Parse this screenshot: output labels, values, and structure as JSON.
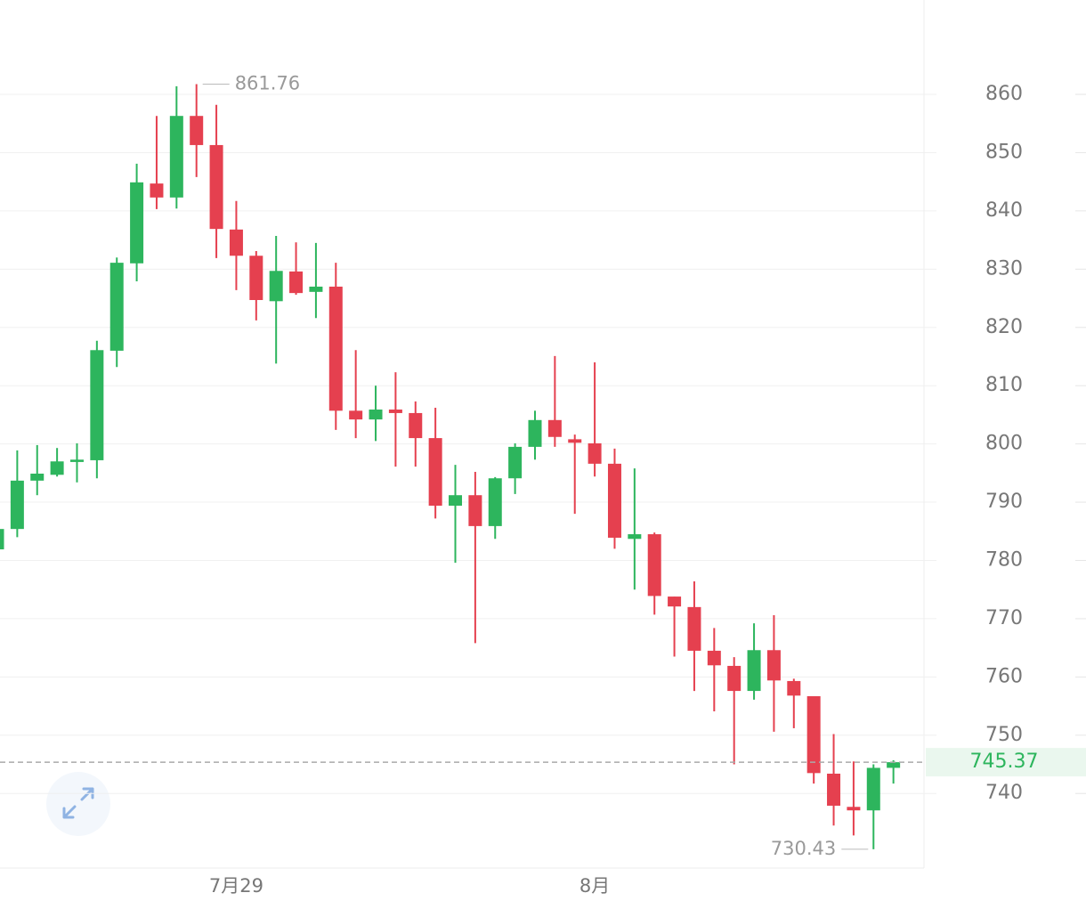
{
  "chart_data": {
    "type": "candlestick",
    "categories": [
      null,
      null,
      null,
      null,
      null,
      null,
      null,
      null,
      null,
      null,
      null,
      null,
      "7月29",
      null,
      null,
      null,
      null,
      null,
      null,
      null,
      null,
      null,
      null,
      null,
      null,
      null,
      null,
      null,
      null,
      null,
      "8月",
      null,
      null,
      null,
      null,
      null,
      null,
      null,
      null,
      null,
      null,
      null,
      null,
      null,
      null,
      null
    ],
    "open": [
      781.9,
      785.4,
      793.7,
      794.7,
      796.9,
      797.2,
      816.0,
      831.0,
      844.7,
      842.3,
      856.3,
      851.3,
      836.8,
      832.3,
      824.5,
      829.6,
      826.1,
      827.0,
      805.7,
      804.2,
      805.9,
      805.3,
      801.0,
      789.4,
      791.2,
      785.9,
      794.1,
      799.5,
      804.1,
      800.8,
      800.1,
      796.6,
      783.7,
      784.5,
      773.8,
      772.0,
      764.5,
      761.9,
      757.6,
      764.6,
      759.3,
      756.7,
      743.4,
      737.7,
      737.1,
      744.4
    ],
    "high": [
      785.4,
      798.9,
      799.8,
      799.3,
      800.1,
      817.7,
      832.0,
      848.1,
      856.3,
      861.4,
      861.76,
      858.2,
      841.7,
      833.1,
      835.7,
      834.6,
      834.5,
      831.1,
      816.1,
      810.0,
      812.3,
      807.3,
      806.2,
      796.4,
      795.2,
      794.3,
      800.1,
      805.7,
      815.1,
      801.6,
      814.0,
      799.2,
      795.8,
      784.8,
      773.8,
      776.4,
      768.4,
      763.4,
      769.2,
      770.6,
      759.7,
      756.7,
      750.2,
      745.5,
      745.0,
      745.7
    ],
    "low": [
      781.9,
      784.0,
      791.2,
      794.4,
      793.4,
      794.1,
      813.2,
      827.9,
      840.3,
      840.4,
      845.8,
      831.9,
      826.4,
      821.2,
      813.8,
      825.6,
      821.6,
      802.4,
      801.0,
      800.5,
      796.1,
      796.1,
      787.2,
      779.6,
      765.8,
      783.7,
      791.4,
      797.3,
      799.5,
      788.0,
      794.4,
      782.0,
      775.0,
      770.7,
      763.5,
      757.6,
      754.1,
      745.0,
      756.1,
      750.6,
      751.2,
      741.7,
      734.5,
      732.8,
      730.43,
      741.7
    ],
    "close": [
      785.4,
      793.7,
      794.9,
      797.0,
      797.3,
      816.1,
      831.1,
      844.9,
      842.3,
      856.3,
      851.3,
      836.9,
      832.3,
      824.7,
      829.7,
      825.9,
      827.0,
      805.7,
      804.2,
      805.9,
      805.3,
      801.0,
      789.4,
      791.2,
      785.9,
      794.1,
      799.5,
      804.1,
      801.2,
      800.2,
      796.6,
      783.9,
      784.5,
      773.9,
      772.1,
      764.5,
      762.0,
      757.6,
      764.6,
      759.4,
      756.8,
      743.5,
      737.9,
      737.1,
      744.4,
      745.37
    ],
    "up_color": "#2db55d",
    "down_color": "#e5404f",
    "ylim": [
      727.2,
      876.2
    ],
    "yticks": [
      740,
      750,
      760,
      770,
      780,
      790,
      800,
      810,
      820,
      830,
      840,
      850,
      860
    ],
    "grid": true,
    "max_label": 861.76,
    "min_label": 730.43,
    "last_price": 745.37
  }
}
